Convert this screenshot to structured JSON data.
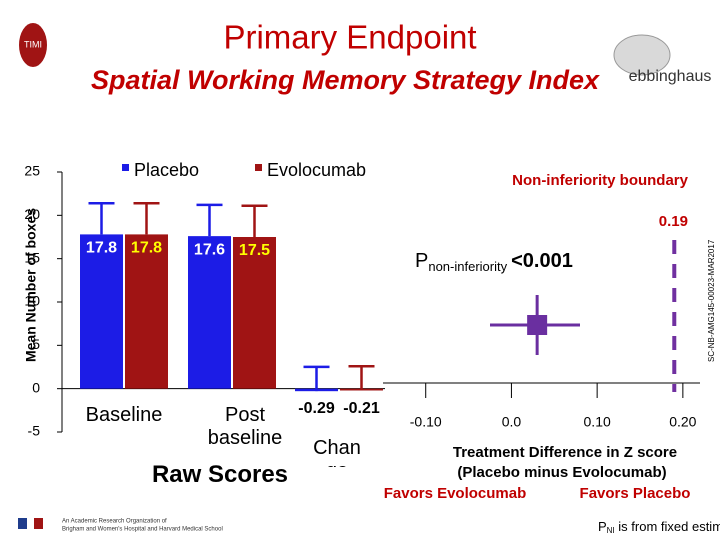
{
  "header": {
    "title": "Primary Endpoint",
    "subtitle": "Spatial Working Memory Strategy Index",
    "logo_left": "TIMI",
    "logo_right": "ebbinghaus"
  },
  "chart_data": [
    {
      "type": "bar",
      "ylabel": "Mean Number of boxes",
      "xlabel": "Raw Scores",
      "categories": [
        "Baseline",
        "Post baseline",
        "Change"
      ],
      "series": [
        {
          "name": "Placebo",
          "color": "#1c1ce6",
          "label_color": "#ffffff",
          "values": [
            17.8,
            17.6,
            -0.29
          ],
          "errors": [
            3.6,
            3.6,
            2.8
          ]
        },
        {
          "name": "Evolocumab",
          "color": "#a01414",
          "label_color": "#ffff00",
          "values": [
            17.8,
            17.5,
            -0.21
          ],
          "errors": [
            3.6,
            3.6,
            2.8
          ]
        }
      ],
      "ylim": [
        -5,
        25
      ],
      "yticks": [
        -5,
        0,
        5,
        10,
        15,
        20,
        25
      ]
    },
    {
      "type": "forest",
      "estimate": 0.03,
      "ci": [
        -0.025,
        0.08
      ],
      "color": "#6a2fa0",
      "boundary": 0.19,
      "boundary_label": "Non-inferiority boundary",
      "boundary_color": "#7030a0",
      "p_main": "P",
      "p_sub": "non-inferiority",
      "p_value": "<0.001",
      "xlim": [
        -0.13,
        0.22
      ],
      "xticks": [
        {
          "value": -0.1,
          "label": "-0.10"
        },
        {
          "value": 0,
          "label": "0.0"
        },
        {
          "value": 0.1,
          "label": "0.10"
        },
        {
          "value": 0.2,
          "label": "0.20"
        }
      ],
      "xlabel": "Treatment Difference in Z score",
      "xlabel2": "(Placebo minus Evolocumab)",
      "favors_left": "Favors Evolocumab",
      "favors_right": "Favors Placebo"
    }
  ],
  "footer": {
    "org": "An Academic Research Organization of",
    "org2": "Brigham and Women's Hospital and Harvard Medical School",
    "note_p": "P",
    "note_sub": "NI",
    "note_rest": " is from fixed estimate",
    "code": "SC-NB-AMG145-00023-MAR2017"
  }
}
